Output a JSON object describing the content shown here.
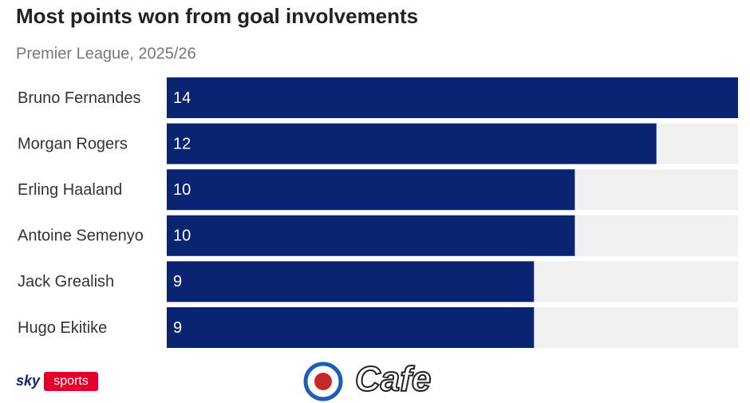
{
  "chart_data": {
    "type": "hbar",
    "title": "Most points won from goal involvements",
    "subtitle": "Premier League, 2025/26",
    "categories": [
      "Bruno Fernandes",
      "Morgan Rogers",
      "Erling Haaland",
      "Antoine Semenyo",
      "Jack Grealish",
      "Hugo Ekitike"
    ],
    "values": [
      14,
      12,
      10,
      10,
      9,
      9
    ],
    "color": "#0b2471",
    "track_color": "#f0f0f0",
    "xlim": [
      0,
      14
    ]
  },
  "footer": {
    "brand_1": "sky",
    "brand_2": "sports",
    "watermark": "Cafe"
  }
}
